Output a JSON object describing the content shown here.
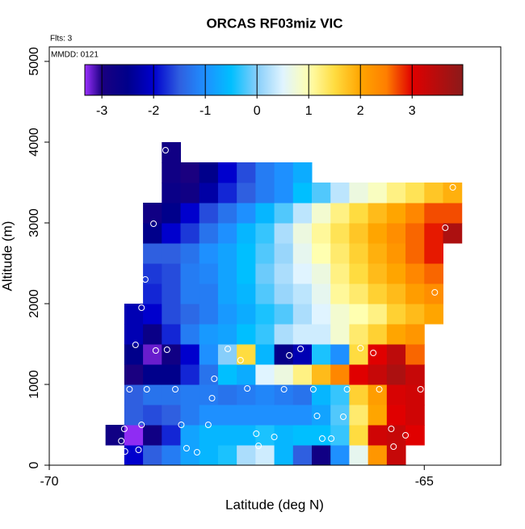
{
  "chart_data": {
    "type": "heatmap",
    "title": "ORCAS RF03miz VIC",
    "subtitle": "Flts: 3",
    "annotation": "MMDD: 0121",
    "xlabel": "Latitude (deg N)",
    "ylabel": "Altitude (m)",
    "xlim": [
      -70,
      -63.98
    ],
    "xticks": [
      -70,
      -65
    ],
    "ylim": [
      0,
      5180
    ],
    "yticks": [
      0,
      1000,
      2000,
      3000,
      4000,
      5000
    ],
    "x_bins": [
      -69.25,
      -69,
      -68.75,
      -68.5,
      -68.25,
      -68,
      -67.75,
      -67.5,
      -67.25,
      -67,
      -66.75,
      -66.5,
      -66.25,
      -66,
      -65.75,
      -65.5,
      -65.25,
      -65,
      -64.75,
      -64.5
    ],
    "y_bins": [
      0,
      250,
      500,
      750,
      1000,
      1250,
      1500,
      1750,
      2000,
      2250,
      2500,
      2750,
      3000,
      3250,
      3500,
      3750,
      4000
    ],
    "values": [
      [
        null,
        -2,
        -1.5,
        -1.2,
        -0.8,
        -0.6,
        -0.4,
        0.2,
        0.4,
        -0.6,
        -1.5,
        -2.8,
        -1,
        0.6,
        2.2,
        3.3,
        null,
        null,
        null
      ],
      [
        -2.8,
        -3.3,
        -2.8,
        -1.8,
        -0.8,
        -0.6,
        -0.6,
        -0.6,
        -0.4,
        -0.6,
        -0.5,
        -0.5,
        -0.3,
        1.5,
        3.2,
        3.3,
        3.0,
        null,
        null
      ],
      [
        null,
        -1.5,
        -1.6,
        -1.5,
        -1.2,
        -1,
        -1,
        -1,
        -1,
        -1,
        -1,
        -0.8,
        -0.2,
        1.3,
        2,
        3,
        3.2,
        null,
        null
      ],
      [
        null,
        -1.5,
        -1.3,
        -1.3,
        -1.2,
        -1.2,
        -1.3,
        -1.2,
        -1.1,
        -1.2,
        -1.3,
        -0.6,
        -0.3,
        1.6,
        2.1,
        3.1,
        3.2,
        null,
        null
      ],
      [
        null,
        -3,
        -2.5,
        -2.5,
        -1.8,
        -1.3,
        -0.5,
        -0.7,
        0.5,
        0.7,
        1.2,
        1.8,
        2.4,
        3.0,
        3.3,
        3.6,
        3.3,
        null,
        null
      ],
      [
        null,
        -2.5,
        -3.2,
        -2.8,
        -2,
        -1,
        0,
        1.5,
        -0.6,
        -2.6,
        -2.2,
        -0.4,
        -1,
        1.5,
        3,
        3.4,
        2.6,
        null,
        null
      ],
      [
        null,
        -2.2,
        -2.7,
        -1.8,
        -1.2,
        -0.9,
        -0.8,
        -0.5,
        -0.3,
        0.2,
        0.4,
        0.4,
        0.8,
        1.3,
        1.6,
        2,
        2.2,
        null,
        null
      ],
      [
        null,
        -2.2,
        -2,
        -1.6,
        -1.4,
        -1.2,
        -0.9,
        -0.7,
        -0.4,
        -0.2,
        0.2,
        0.5,
        0.8,
        1,
        1.2,
        1.6,
        1.8,
        2,
        null
      ],
      [
        null,
        null,
        -1.8,
        -1.6,
        -1.2,
        -1.2,
        -0.8,
        -0.6,
        -0.2,
        0.1,
        0.3,
        0.6,
        1.1,
        1.3,
        1.6,
        1.8,
        2.1,
        2.3,
        null
      ],
      [
        null,
        null,
        -1.7,
        -1.6,
        -1.2,
        -1.1,
        -0.8,
        -0.5,
        -0.1,
        0.2,
        0.5,
        0.7,
        1.2,
        1.5,
        1.8,
        2,
        2.4,
        2.6,
        null
      ],
      [
        null,
        null,
        -1.5,
        -1.5,
        -1.3,
        -1,
        -0.8,
        -0.5,
        -0.2,
        0.1,
        0.6,
        1,
        1.3,
        1.6,
        1.9,
        2.2,
        2.6,
        2.9,
        null
      ],
      [
        null,
        null,
        -2.5,
        -2,
        -1.7,
        -1.3,
        -1,
        -0.6,
        -0.3,
        0.2,
        0.7,
        1.1,
        1.4,
        1.7,
        2,
        2.3,
        2.6,
        2.9,
        3.6
      ],
      [
        null,
        null,
        -2.8,
        -2.5,
        -2,
        -1.6,
        -1.3,
        -1,
        -0.6,
        -0.2,
        0.3,
        0.8,
        1.2,
        1.5,
        1.8,
        2,
        2.4,
        2.7,
        2.7
      ],
      [
        null,
        null,
        null,
        -2.7,
        -2.8,
        -2.3,
        -1.8,
        -1.5,
        -1.2,
        -1,
        -0.5,
        -0.2,
        0.3,
        0.7,
        0.9,
        1.2,
        1.4,
        1.7,
        1.9
      ],
      [
        null,
        null,
        null,
        -2.8,
        -3,
        -2.5,
        -2,
        -1.6,
        -1.2,
        -1,
        -0.7,
        null,
        null,
        null,
        null,
        null,
        null,
        null,
        null
      ],
      [
        null,
        null,
        null,
        -2.8,
        null,
        null,
        null,
        null,
        null,
        null,
        null,
        null,
        null,
        null,
        null,
        null,
        null,
        null,
        null
      ]
    ],
    "colorscale": [
      [
        -3.33,
        "#9b30ff"
      ],
      [
        -3,
        "#1a0080"
      ],
      [
        -2.5,
        "#00008b"
      ],
      [
        -2,
        "#0000cd"
      ],
      [
        -1.5,
        "#2f5fe0"
      ],
      [
        -1,
        "#1e90ff"
      ],
      [
        -0.5,
        "#00bfff"
      ],
      [
        0,
        "#87cefa"
      ],
      [
        0.5,
        "#e0f4ff"
      ],
      [
        1,
        "#ffffb0"
      ],
      [
        1.5,
        "#ffdc40"
      ],
      [
        2,
        "#ffa500"
      ],
      [
        2.5,
        "#ff7f00"
      ],
      [
        3,
        "#e00000"
      ],
      [
        3.98,
        "#8b1a1a"
      ]
    ],
    "colorbar_ticks": [
      -3,
      -2,
      -1,
      0,
      1,
      2,
      3
    ],
    "points": {
      "x": [
        -68.45,
        -68.61,
        -68.72,
        -68.77,
        -68.85,
        -68.43,
        -68.58,
        -68.93,
        -68.7,
        -68.32,
        -67.83,
        -67.8,
        -67.62,
        -67.45,
        -67.36,
        -66.87,
        -66.8,
        -66.65,
        -66.48,
        -66.43,
        -66.03,
        -66.08,
        -65.6,
        -65.85,
        -65.68,
        -65.05,
        -64.86,
        -64.72,
        -64.62,
        -69,
        -69.04,
        -68.99,
        -68.81,
        -68.77,
        -68.24,
        -68.17,
        -68.03,
        -67.88,
        -67.24,
        -67.21,
        -67,
        -66.36,
        -66.24,
        -65.44,
        -65.41,
        -65.25
      ],
      "y": [
        3900,
        2990,
        2300,
        1950,
        1490,
        1430,
        1420,
        940,
        940,
        940,
        830,
        1070,
        1440,
        1300,
        950,
        940,
        1360,
        1440,
        940,
        610,
        940,
        600,
        940,
        1450,
        1390,
        940,
        2140,
        2940,
        3440,
        450,
        300,
        170,
        190,
        500,
        500,
        210,
        160,
        500,
        390,
        240,
        350,
        330,
        330,
        450,
        230,
        370
      ]
    }
  }
}
